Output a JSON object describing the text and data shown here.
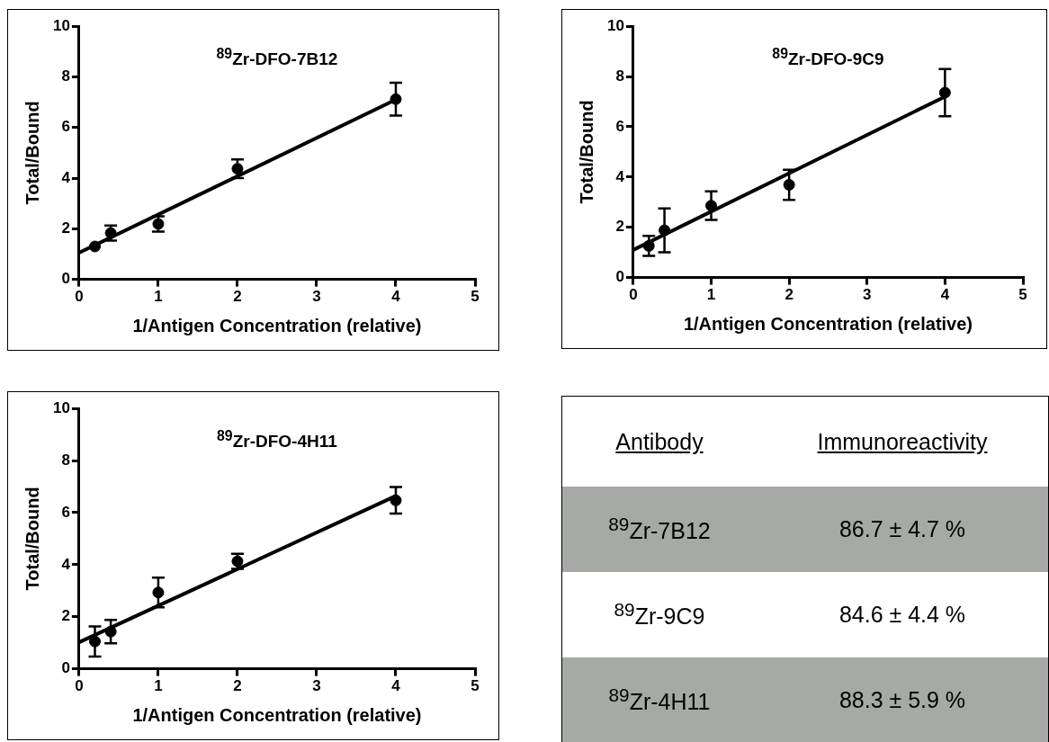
{
  "chart_data": [
    {
      "type": "scatter",
      "title": "$^{89}$Zr-DFO-7B12",
      "xlabel": "1/Antigen Concentration (relative)",
      "ylabel": "Total/Bound",
      "xlim": [
        0,
        5
      ],
      "xticks": [
        0,
        1,
        2,
        3,
        4,
        5
      ],
      "ylim": [
        0,
        10
      ],
      "yticks": [
        0,
        2,
        4,
        6,
        8,
        10
      ],
      "marker": "circle",
      "series": [
        {
          "type": "scatter",
          "color": "#000000",
          "x": [
            0.2,
            0.4,
            1,
            2,
            4
          ],
          "values": [
            1.3,
            1.83,
            2.19,
            4.37,
            7.12
          ],
          "errors": [
            null,
            0.3,
            0.3,
            0.37,
            0.65
          ]
        },
        {
          "type": "line",
          "color": "#000000",
          "marker": "none",
          "x": [
            0,
            4
          ],
          "values": [
            1.05,
            7.1
          ]
        }
      ]
    },
    {
      "type": "scatter",
      "title": "$^{89}$Zr-DFO-9C9",
      "xlabel": "1/Antigen Concentration (relative)",
      "ylabel": "Total/Bound",
      "xlim": [
        0,
        5
      ],
      "xticks": [
        0,
        1,
        2,
        3,
        4,
        5
      ],
      "ylim": [
        0,
        10
      ],
      "yticks": [
        0,
        2,
        4,
        6,
        8,
        10
      ],
      "marker": "circle",
      "series": [
        {
          "type": "scatter",
          "color": "#000000",
          "x": [
            0.2,
            0.4,
            1,
            2,
            4
          ],
          "values": [
            1.26,
            1.88,
            2.86,
            3.69,
            7.36
          ],
          "errors": [
            0.4,
            0.87,
            0.57,
            0.6,
            0.94
          ]
        },
        {
          "type": "line",
          "color": "#000000",
          "marker": "none",
          "x": [
            0,
            4
          ],
          "values": [
            1.1,
            7.2
          ]
        }
      ]
    },
    {
      "type": "scatter",
      "title": "$^{89}$Zr-DFO-4H11",
      "xlabel": "1/Antigen Concentration (relative)",
      "ylabel": "Total/Bound",
      "xlim": [
        0,
        5
      ],
      "xticks": [
        0,
        1,
        2,
        3,
        4,
        5
      ],
      "ylim": [
        0,
        10
      ],
      "yticks": [
        0,
        2,
        4,
        6,
        8,
        10
      ],
      "marker": "circle",
      "series": [
        {
          "type": "scatter",
          "color": "#000000",
          "x": [
            0.2,
            0.4,
            1,
            2,
            4
          ],
          "values": [
            1.05,
            1.43,
            2.93,
            4.13,
            6.47
          ],
          "errors": [
            0.58,
            0.45,
            0.57,
            0.29,
            0.51
          ]
        },
        {
          "type": "line",
          "color": "#000000",
          "marker": "none",
          "x": [
            0,
            4
          ],
          "values": [
            1.02,
            6.64
          ]
        }
      ]
    },
    {
      "type": "other",
      "annotations": [
        "Antibody",
        "Immunoreactivity",
        "$^{89}$Zr-7B12",
        "86.7 ± 4.7 %",
        "$^{89}$Zr-9C9",
        "84.6 ± 4.4 %",
        "$^{89}$Zr-4H11",
        "88.3 ± 5.9 %"
      ]
    }
  ]
}
